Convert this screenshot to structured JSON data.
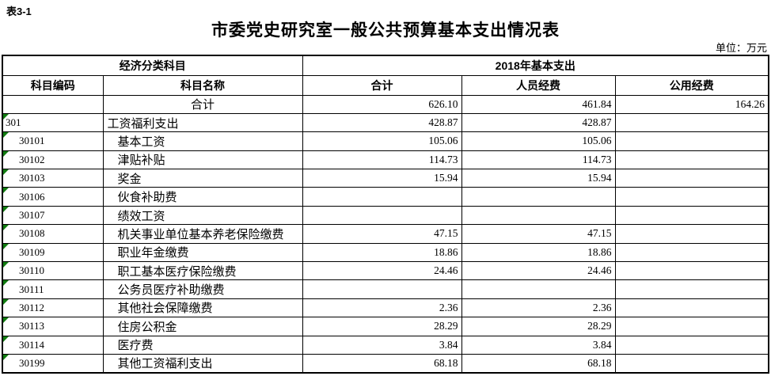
{
  "page": {
    "table_tag": "表3-1",
    "title": "市委党史研究室一般公共预算基本支出情况表",
    "unit_label": "单位：万元"
  },
  "colors": {
    "border": "#000000",
    "error_flag_triangle_green": "#107c10",
    "background": "#ffffff"
  },
  "table": {
    "header_groups": {
      "economic_classification": "经济分类科目",
      "basic_expenditure_2018": "2018年基本支出"
    },
    "columns": {
      "code": "科目编码",
      "name": "科目名称",
      "total": "合计",
      "personnel": "人员经费",
      "public": "公用经费"
    },
    "rows": [
      {
        "code": "",
        "flag": false,
        "code_indent": false,
        "name": "合计",
        "name_center": true,
        "name_indent": false,
        "total": "626.10",
        "personnel": "461.84",
        "public": "164.26"
      },
      {
        "code": "301",
        "flag": true,
        "code_indent": false,
        "name": "工资福利支出",
        "name_center": false,
        "name_indent": false,
        "total": "428.87",
        "personnel": "428.87",
        "public": ""
      },
      {
        "code": "30101",
        "flag": true,
        "code_indent": true,
        "name": "基本工资",
        "name_center": false,
        "name_indent": true,
        "total": "105.06",
        "personnel": "105.06",
        "public": ""
      },
      {
        "code": "30102",
        "flag": true,
        "code_indent": true,
        "name": "津贴补贴",
        "name_center": false,
        "name_indent": true,
        "total": "114.73",
        "personnel": "114.73",
        "public": ""
      },
      {
        "code": "30103",
        "flag": true,
        "code_indent": true,
        "name": "奖金",
        "name_center": false,
        "name_indent": true,
        "total": "15.94",
        "personnel": "15.94",
        "public": ""
      },
      {
        "code": "30106",
        "flag": true,
        "code_indent": true,
        "name": "伙食补助费",
        "name_center": false,
        "name_indent": true,
        "total": "",
        "personnel": "",
        "public": ""
      },
      {
        "code": "30107",
        "flag": true,
        "code_indent": true,
        "name": "绩效工资",
        "name_center": false,
        "name_indent": true,
        "total": "",
        "personnel": "",
        "public": ""
      },
      {
        "code": "30108",
        "flag": true,
        "code_indent": true,
        "name": "机关事业单位基本养老保险缴费",
        "name_center": false,
        "name_indent": true,
        "total": "47.15",
        "personnel": "47.15",
        "public": ""
      },
      {
        "code": "30109",
        "flag": true,
        "code_indent": true,
        "name": "职业年金缴费",
        "name_center": false,
        "name_indent": true,
        "total": "18.86",
        "personnel": "18.86",
        "public": ""
      },
      {
        "code": "30110",
        "flag": true,
        "code_indent": true,
        "name": "职工基本医疗保险缴费",
        "name_center": false,
        "name_indent": true,
        "total": "24.46",
        "personnel": "24.46",
        "public": ""
      },
      {
        "code": "30111",
        "flag": true,
        "code_indent": true,
        "name": "公务员医疗补助缴费",
        "name_center": false,
        "name_indent": true,
        "total": "",
        "personnel": "",
        "public": ""
      },
      {
        "code": "30112",
        "flag": true,
        "code_indent": true,
        "name": "其他社会保障缴费",
        "name_center": false,
        "name_indent": true,
        "total": "2.36",
        "personnel": "2.36",
        "public": ""
      },
      {
        "code": "30113",
        "flag": true,
        "code_indent": true,
        "name": "住房公积金",
        "name_center": false,
        "name_indent": true,
        "total": "28.29",
        "personnel": "28.29",
        "public": ""
      },
      {
        "code": "30114",
        "flag": true,
        "code_indent": true,
        "name": "医疗费",
        "name_center": false,
        "name_indent": true,
        "total": "3.84",
        "personnel": "3.84",
        "public": ""
      },
      {
        "code": "30199",
        "flag": true,
        "code_indent": true,
        "name": "其他工资福利支出",
        "name_center": false,
        "name_indent": true,
        "total": "68.18",
        "personnel": "68.18",
        "public": ""
      }
    ]
  }
}
